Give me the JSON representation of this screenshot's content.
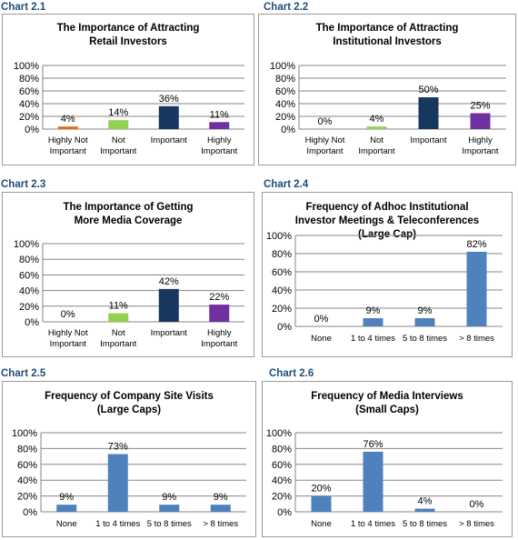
{
  "chart_data": [
    {
      "id": "c1",
      "heading": "Chart 2.1",
      "type": "bar",
      "title": [
        "The Importance of Attracting",
        "Retail Investors"
      ],
      "categories": [
        [
          "Highly Not",
          "Important"
        ],
        [
          "Not",
          "Important"
        ],
        [
          "Important"
        ],
        [
          "Highly",
          "Important"
        ]
      ],
      "values": [
        4,
        14,
        36,
        11
      ],
      "value_labels": [
        "4%",
        "14%",
        "36%",
        "11%"
      ],
      "colors": [
        "#e46c0a",
        "#92d050",
        "#17375e",
        "#7030a0"
      ],
      "ylim": [
        0,
        100
      ],
      "yticks": [
        "0%",
        "20%",
        "40%",
        "60%",
        "80%",
        "100%"
      ],
      "grid": true
    },
    {
      "id": "c2",
      "heading": "Chart 2.2",
      "type": "bar",
      "title": [
        "The Importance of Attracting",
        "Institutional Investors"
      ],
      "categories": [
        [
          "Highly Not",
          "Important"
        ],
        [
          "Not",
          "Important"
        ],
        [
          "Important"
        ],
        [
          "Highly",
          "Important"
        ]
      ],
      "values": [
        0,
        4,
        50,
        25
      ],
      "value_labels": [
        "0%",
        "4%",
        "50%",
        "25%"
      ],
      "colors": [
        "#e46c0a",
        "#92d050",
        "#17375e",
        "#7030a0"
      ],
      "ylim": [
        0,
        100
      ],
      "yticks": [
        "0%",
        "20%",
        "40%",
        "60%",
        "80%",
        "100%"
      ],
      "grid": true
    },
    {
      "id": "c3",
      "heading": "Chart 2.3",
      "type": "bar",
      "title": [
        "The Importance of Getting",
        "More Media Coverage"
      ],
      "categories": [
        [
          "Highly Not",
          "Important"
        ],
        [
          "Not",
          "Important"
        ],
        [
          "Important"
        ],
        [
          "Highly",
          "Important"
        ]
      ],
      "values": [
        0,
        11,
        42,
        22
      ],
      "value_labels": [
        "0%",
        "11%",
        "42%",
        "22%"
      ],
      "colors": [
        "#e46c0a",
        "#92d050",
        "#17375e",
        "#7030a0"
      ],
      "ylim": [
        0,
        100
      ],
      "yticks": [
        "0%",
        "20%",
        "40%",
        "60%",
        "80%",
        "100%"
      ],
      "grid": true
    },
    {
      "id": "c4",
      "heading": "Chart 2.4",
      "type": "bar",
      "title": [
        "Frequency of Adhoc Institutional",
        "Investor Meetings & Teleconferences",
        "(Large Cap)"
      ],
      "categories": [
        [
          "None"
        ],
        [
          "1 to 4 times"
        ],
        [
          "5 to 8 times"
        ],
        [
          "> 8 times"
        ]
      ],
      "values": [
        0,
        9,
        9,
        82
      ],
      "value_labels": [
        "0%",
        "9%",
        "9%",
        "82%"
      ],
      "colors": [
        "#4f81bd",
        "#4f81bd",
        "#4f81bd",
        "#4f81bd"
      ],
      "ylim": [
        0,
        100
      ],
      "yticks": [
        "0%",
        "20%",
        "40%",
        "60%",
        "80%",
        "100%"
      ],
      "grid": true
    },
    {
      "id": "c5",
      "heading": "Chart 2.5",
      "type": "bar",
      "title": [
        "Frequency of Company Site Visits",
        "(Large Caps)"
      ],
      "categories": [
        [
          "None"
        ],
        [
          "1 to 4 times"
        ],
        [
          "5 to 8 times"
        ],
        [
          "> 8 times"
        ]
      ],
      "values": [
        9,
        73,
        9,
        9
      ],
      "value_labels": [
        "9%",
        "73%",
        "9%",
        "9%"
      ],
      "colors": [
        "#4f81bd",
        "#4f81bd",
        "#4f81bd",
        "#4f81bd"
      ],
      "ylim": [
        0,
        100
      ],
      "yticks": [
        "0%",
        "20%",
        "40%",
        "60%",
        "80%",
        "100%"
      ],
      "grid": true
    },
    {
      "id": "c6",
      "heading": "Chart 2.6",
      "type": "bar",
      "title": [
        "Frequency of Media Interviews",
        "(Small Caps)"
      ],
      "categories": [
        [
          "None"
        ],
        [
          "1 to 4 times"
        ],
        [
          "5 to 8 times"
        ],
        [
          "> 8 times"
        ]
      ],
      "values": [
        20,
        76,
        4,
        0
      ],
      "value_labels": [
        "20%",
        "76%",
        "4%",
        "0%"
      ],
      "colors": [
        "#4f81bd",
        "#4f81bd",
        "#4f81bd",
        "#4f81bd"
      ],
      "ylim": [
        0,
        100
      ],
      "yticks": [
        "0%",
        "20%",
        "40%",
        "60%",
        "80%",
        "100%"
      ],
      "grid": true
    }
  ]
}
